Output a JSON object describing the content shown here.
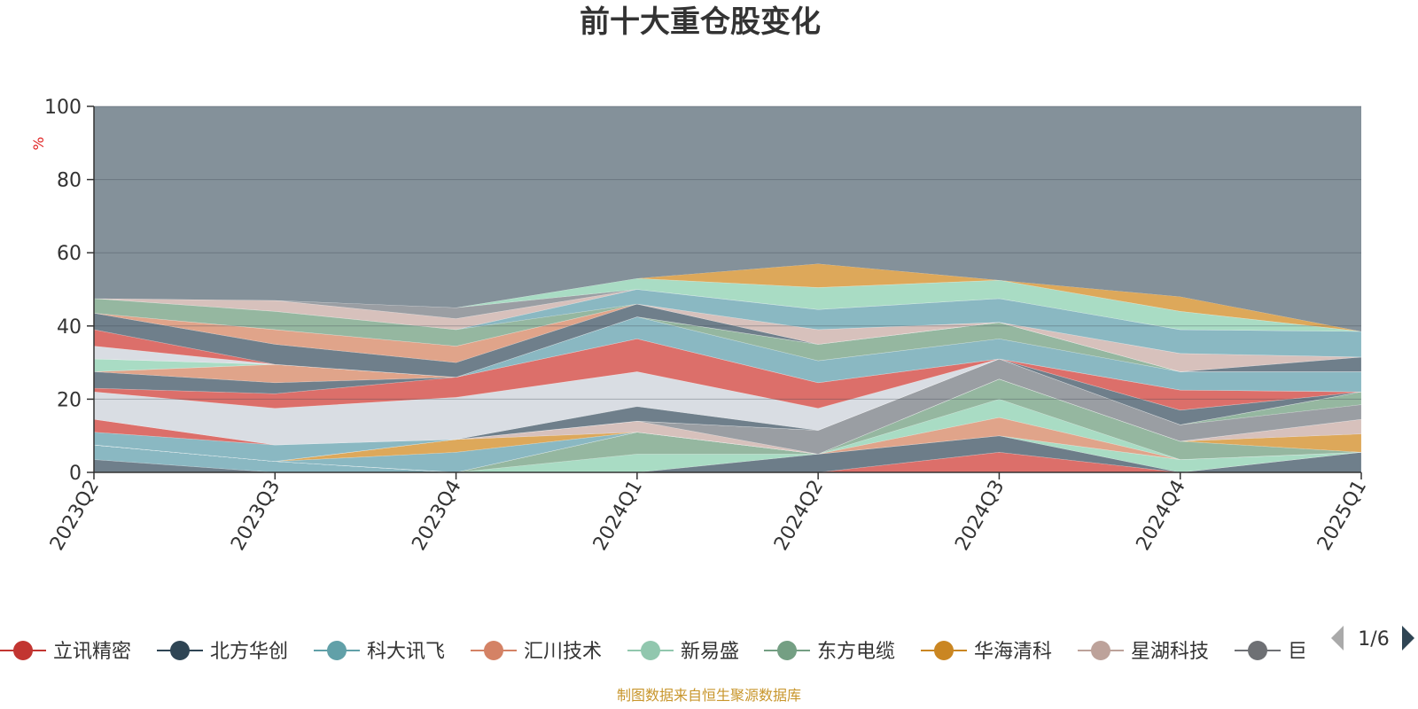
{
  "chart_data": {
    "type": "area",
    "stacked": true,
    "title": "前十大重仓股变化",
    "ylabel": "%",
    "ylim": [
      0,
      100
    ],
    "yticks": [
      0,
      20,
      40,
      60,
      80,
      100
    ],
    "grid": true,
    "legend_position": "bottom",
    "categories": [
      "2023Q2",
      "2023Q3",
      "2023Q4",
      "2024Q1",
      "2024Q2",
      "2024Q3",
      "2024Q4",
      "2025Q1"
    ],
    "series": [
      {
        "name": "",
        "color": "#6f7f8b",
        "values": [
          3.5,
          0,
          0,
          0,
          0,
          0,
          0,
          5.5
        ]
      },
      {
        "name": "",
        "color": "#8ab8c2",
        "values": [
          4.0,
          3.0,
          0,
          0,
          0,
          0,
          0,
          0
        ]
      },
      {
        "name": "",
        "color": "#dc6f6a",
        "values": [
          0,
          0,
          0,
          0,
          0,
          5.5,
          0,
          0
        ]
      },
      {
        "name": "",
        "color": "#6d7d89",
        "values": [
          0,
          0,
          0,
          0,
          5.0,
          4.5,
          0,
          0
        ]
      },
      {
        "name": "",
        "color": "#a9dcc4",
        "values": [
          0,
          0,
          0,
          5.0,
          0,
          0,
          3.5,
          0
        ]
      },
      {
        "name": "",
        "color": "#95b7a0",
        "values": [
          0,
          0,
          0,
          6.0,
          0,
          0,
          0,
          0
        ]
      },
      {
        "name": "",
        "color": "#e0a48a",
        "values": [
          0,
          0,
          0,
          0,
          0,
          5.0,
          0,
          0
        ]
      },
      {
        "name": "",
        "color": "#a9dcc4",
        "values": [
          0,
          0,
          0,
          0,
          0,
          5.0,
          0,
          0
        ]
      },
      {
        "name": "",
        "color": "#95b7a0",
        "values": [
          0,
          0,
          0,
          0,
          0,
          5.5,
          5.0,
          0
        ]
      },
      {
        "name": "",
        "color": "#dda85a",
        "values": [
          0,
          0,
          0,
          0,
          0,
          0,
          0,
          5.0
        ]
      },
      {
        "name": "",
        "color": "#d7c1bc",
        "values": [
          0,
          0,
          0,
          0,
          0,
          0,
          0,
          4.0
        ]
      },
      {
        "name": "",
        "color": "#8ab8c2",
        "values": [
          0,
          0,
          5.5,
          0,
          0,
          0,
          0,
          0
        ]
      },
      {
        "name": "",
        "color": "#dda85a",
        "values": [
          0,
          0,
          3.5,
          0,
          0,
          0,
          0,
          0
        ]
      },
      {
        "name": "",
        "color": "#d7c1bc",
        "values": [
          0,
          0,
          0,
          3.0,
          0,
          0,
          0,
          0
        ]
      },
      {
        "name": "",
        "color": "#9a9ea3",
        "values": [
          0,
          0,
          0,
          0,
          6.5,
          5.5,
          4.5,
          4.0
        ]
      },
      {
        "name": "",
        "color": "#95b7a0",
        "values": [
          0,
          0,
          0,
          0,
          0,
          0,
          0,
          3.5
        ]
      },
      {
        "name": "",
        "color": "#d9dde3",
        "values": [
          0,
          0,
          0,
          0,
          0,
          0,
          0,
          0
        ]
      },
      {
        "name": "",
        "color": "#8ab8c2",
        "values": [
          3.5,
          4.5,
          0,
          0,
          0,
          0,
          0,
          0
        ]
      },
      {
        "name": "",
        "color": "#dc6f6a",
        "values": [
          3.5,
          0,
          0,
          0,
          0,
          0,
          0,
          0
        ]
      },
      {
        "name": "",
        "color": "#6f7f8b",
        "values": [
          0,
          0,
          0,
          4.0,
          0,
          0,
          4.0,
          0
        ]
      },
      {
        "name": "",
        "color": "#d9dde3",
        "values": [
          7.5,
          10.0,
          11.5,
          9.5,
          6.0,
          0,
          0,
          0
        ]
      },
      {
        "name": "",
        "color": "#dc6f6a",
        "values": [
          1.0,
          4.0,
          5.5,
          9.0,
          7.0,
          0,
          5.5,
          0
        ]
      },
      {
        "name": "",
        "color": "#6f7f8b",
        "values": [
          4.5,
          3.0,
          0,
          0,
          0,
          0,
          0,
          0
        ]
      },
      {
        "name": "",
        "color": "#e0a48a",
        "values": [
          0,
          5.0,
          0,
          0,
          0,
          0,
          0,
          0
        ]
      },
      {
        "name": "",
        "color": "#8ab8c2",
        "values": [
          0,
          0,
          0,
          6.0,
          6.0,
          5.5,
          5.0,
          5.5
        ]
      },
      {
        "name": "",
        "color": "#a9dcc4",
        "values": [
          3.5,
          0,
          0,
          0,
          0,
          0,
          0,
          0
        ]
      },
      {
        "name": "",
        "color": "#95b7a0",
        "values": [
          0,
          0,
          0,
          0,
          4.5,
          4.5,
          0,
          0
        ]
      },
      {
        "name": "",
        "color": "#e0a48a",
        "values": [
          0,
          0,
          0,
          0,
          0,
          0,
          0,
          0
        ]
      },
      {
        "name": "",
        "color": "#d9dde3",
        "values": [
          3.5,
          0,
          0,
          0,
          0,
          0,
          0,
          0
        ]
      },
      {
        "name": "",
        "color": "#dc6f6a",
        "values": [
          4.5,
          0,
          0,
          0,
          0,
          0,
          0,
          0
        ]
      },
      {
        "name": "",
        "color": "#6f7f8b",
        "values": [
          4.5,
          5.5,
          4.0,
          3.5,
          0,
          0,
          0,
          4.0
        ]
      },
      {
        "name": "",
        "color": "#e0a48a",
        "values": [
          0,
          4.0,
          4.5,
          0,
          0,
          0,
          0,
          0
        ]
      },
      {
        "name": "",
        "color": "#d7c1bc",
        "values": [
          0,
          0,
          0,
          0,
          4.0,
          0,
          5.0,
          0
        ]
      },
      {
        "name": "",
        "color": "#95b7a0",
        "values": [
          4.0,
          5.0,
          4.5,
          0,
          0,
          0,
          0,
          0
        ]
      },
      {
        "name": "",
        "color": "#8ab8c2",
        "values": [
          0,
          0,
          0,
          4.0,
          5.5,
          6.5,
          6.5,
          7.0
        ]
      },
      {
        "name": "",
        "color": "#d7c1bc",
        "values": [
          0,
          3.0,
          3.0,
          0,
          0,
          0,
          0,
          0
        ]
      },
      {
        "name": "",
        "color": "#9a9ea3",
        "values": [
          0,
          0,
          3.0,
          0,
          0,
          0,
          0,
          0
        ]
      },
      {
        "name": "",
        "color": "#a9dcc4",
        "values": [
          0,
          0,
          0,
          3.0,
          6.0,
          5.0,
          5.0,
          0
        ]
      },
      {
        "name": "",
        "color": "#dda85a",
        "values": [
          0,
          0,
          0,
          0,
          6.5,
          0,
          4.0,
          0
        ]
      }
    ],
    "top_band": {
      "color": "#84919a",
      "to": 100
    }
  },
  "legend": {
    "items": [
      {
        "name": "立讯精密",
        "color": "#c23531"
      },
      {
        "name": "北方华创",
        "color": "#2f4554"
      },
      {
        "name": "科大讯飞",
        "color": "#61a0a8"
      },
      {
        "name": "汇川技术",
        "color": "#d48265"
      },
      {
        "name": "新易盛",
        "color": "#91c7ae"
      },
      {
        "name": "东方电缆",
        "color": "#749f83"
      },
      {
        "name": "华海清科",
        "color": "#ca8622"
      },
      {
        "name": "星湖科技",
        "color": "#bda29a"
      },
      {
        "name": "巨化",
        "color": "#6e7074"
      }
    ],
    "page": "1/6"
  },
  "footer": {
    "source": "制图数据来自恒生聚源数据库"
  }
}
